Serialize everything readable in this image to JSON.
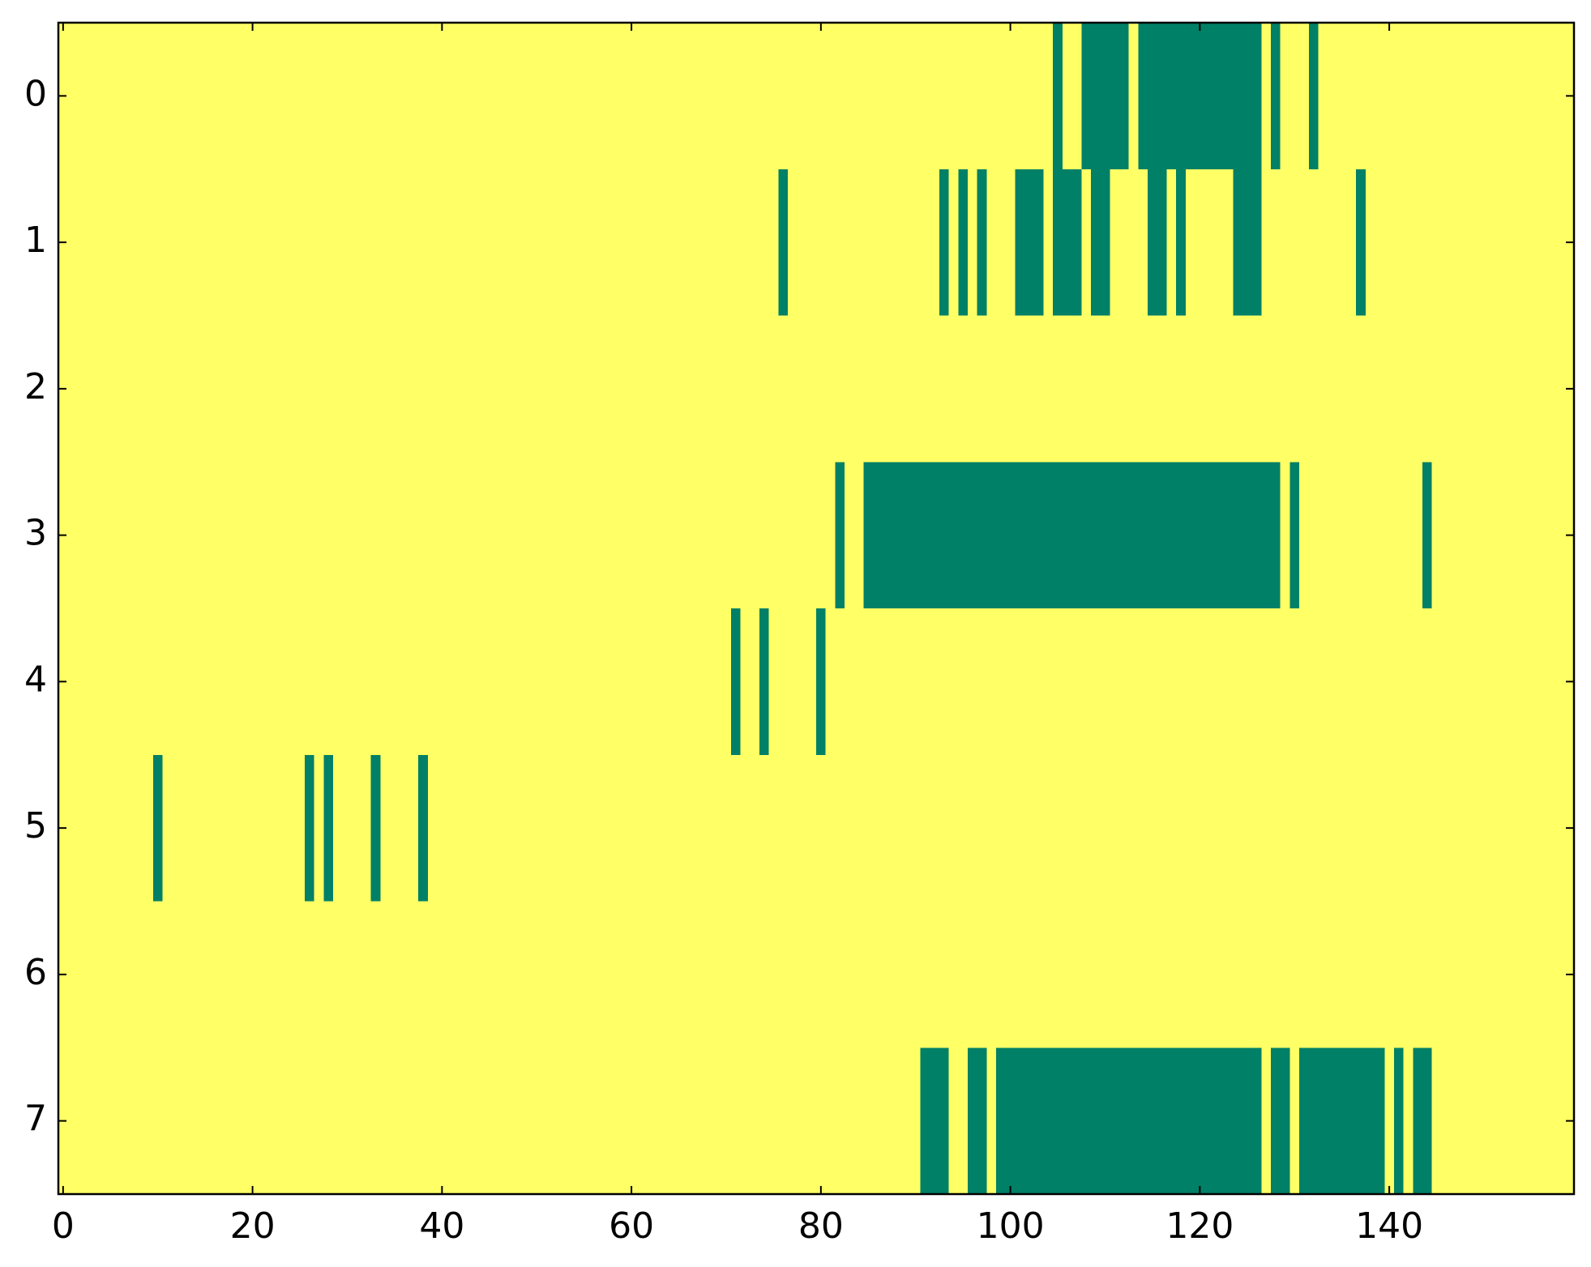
{
  "chart_data": {
    "type": "heatmap",
    "z": [
      [
        1,
        1,
        1,
        1,
        1,
        1,
        1,
        1,
        1,
        1,
        1,
        1,
        1,
        1,
        1,
        1,
        1,
        1,
        1,
        1,
        1,
        1,
        1,
        1,
        1,
        1,
        1,
        1,
        1,
        1,
        1,
        1,
        1,
        1,
        1,
        1,
        1,
        1,
        1,
        1,
        1,
        1,
        1,
        1,
        1,
        1,
        1,
        1,
        1,
        1,
        1,
        1,
        1,
        1,
        1,
        1,
        1,
        1,
        1,
        1,
        1,
        1,
        1,
        1,
        1,
        1,
        1,
        1,
        1,
        1,
        1,
        1,
        1,
        1,
        1,
        1,
        1,
        1,
        1,
        1,
        1,
        1,
        1,
        1,
        1,
        1,
        1,
        1,
        1,
        1,
        1,
        1,
        1,
        1,
        1,
        1,
        1,
        1,
        1,
        1,
        1,
        1,
        1,
        1,
        1,
        0,
        1,
        1,
        0,
        0,
        0,
        0,
        0,
        1,
        0,
        0,
        0,
        0,
        0,
        0,
        0,
        0,
        0,
        0,
        0,
        0,
        0,
        1,
        0,
        1,
        1,
        1,
        0,
        1,
        1,
        1,
        1,
        1,
        1,
        1,
        1,
        1,
        1,
        1,
        1,
        1,
        1,
        1,
        1,
        1,
        1,
        1,
        1,
        1,
        1,
        1,
        1,
        1,
        1,
        1
      ],
      [
        1,
        1,
        1,
        1,
        1,
        1,
        1,
        1,
        1,
        1,
        1,
        1,
        1,
        1,
        1,
        1,
        1,
        1,
        1,
        1,
        1,
        1,
        1,
        1,
        1,
        1,
        1,
        1,
        1,
        1,
        1,
        1,
        1,
        1,
        1,
        1,
        1,
        1,
        1,
        1,
        1,
        1,
        1,
        1,
        1,
        1,
        1,
        1,
        1,
        1,
        1,
        1,
        1,
        1,
        1,
        1,
        1,
        1,
        1,
        1,
        1,
        1,
        1,
        1,
        1,
        1,
        1,
        1,
        1,
        1,
        1,
        1,
        1,
        1,
        1,
        1,
        0,
        1,
        1,
        1,
        1,
        1,
        1,
        1,
        1,
        1,
        1,
        1,
        1,
        1,
        1,
        1,
        1,
        0,
        1,
        0,
        1,
        0,
        1,
        1,
        1,
        0,
        0,
        0,
        1,
        0,
        0,
        0,
        1,
        0,
        0,
        1,
        1,
        1,
        1,
        0,
        0,
        1,
        0,
        1,
        1,
        1,
        1,
        1,
        0,
        0,
        0,
        1,
        1,
        1,
        1,
        1,
        1,
        1,
        1,
        1,
        1,
        0,
        1,
        1,
        1,
        1,
        1,
        1,
        1,
        1,
        1,
        1,
        1,
        1,
        1,
        1,
        1,
        1,
        1,
        1,
        1,
        1,
        1,
        1
      ],
      [
        1,
        1,
        1,
        1,
        1,
        1,
        1,
        1,
        1,
        1,
        1,
        1,
        1,
        1,
        1,
        1,
        1,
        1,
        1,
        1,
        1,
        1,
        1,
        1,
        1,
        1,
        1,
        1,
        1,
        1,
        1,
        1,
        1,
        1,
        1,
        1,
        1,
        1,
        1,
        1,
        1,
        1,
        1,
        1,
        1,
        1,
        1,
        1,
        1,
        1,
        1,
        1,
        1,
        1,
        1,
        1,
        1,
        1,
        1,
        1,
        1,
        1,
        1,
        1,
        1,
        1,
        1,
        1,
        1,
        1,
        1,
        1,
        1,
        1,
        1,
        1,
        1,
        1,
        1,
        1,
        1,
        1,
        1,
        1,
        1,
        1,
        1,
        1,
        1,
        1,
        1,
        1,
        1,
        1,
        1,
        1,
        1,
        1,
        1,
        1,
        1,
        1,
        1,
        1,
        1,
        1,
        1,
        1,
        1,
        1,
        1,
        1,
        1,
        1,
        1,
        1,
        1,
        1,
        1,
        1,
        1,
        1,
        1,
        1,
        1,
        1,
        1,
        1,
        1,
        1,
        1,
        1,
        1,
        1,
        1,
        1,
        1,
        1,
        1,
        1,
        1,
        1,
        1,
        1,
        1,
        1,
        1,
        1,
        1,
        1,
        1,
        1,
        1,
        1,
        1,
        1,
        1,
        1,
        1,
        1
      ],
      [
        1,
        1,
        1,
        1,
        1,
        1,
        1,
        1,
        1,
        1,
        1,
        1,
        1,
        1,
        1,
        1,
        1,
        1,
        1,
        1,
        1,
        1,
        1,
        1,
        1,
        1,
        1,
        1,
        1,
        1,
        1,
        1,
        1,
        1,
        1,
        1,
        1,
        1,
        1,
        1,
        1,
        1,
        1,
        1,
        1,
        1,
        1,
        1,
        1,
        1,
        1,
        1,
        1,
        1,
        1,
        1,
        1,
        1,
        1,
        1,
        1,
        1,
        1,
        1,
        1,
        1,
        1,
        1,
        1,
        1,
        1,
        1,
        1,
        1,
        1,
        1,
        1,
        1,
        1,
        1,
        1,
        1,
        0,
        1,
        1,
        0,
        0,
        0,
        0,
        0,
        0,
        0,
        0,
        0,
        0,
        0,
        0,
        0,
        0,
        0,
        0,
        0,
        0,
        0,
        0,
        0,
        0,
        0,
        0,
        0,
        0,
        0,
        0,
        0,
        0,
        0,
        0,
        0,
        0,
        0,
        0,
        0,
        0,
        0,
        0,
        0,
        0,
        0,
        0,
        1,
        0,
        1,
        1,
        1,
        1,
        1,
        1,
        1,
        1,
        1,
        1,
        1,
        1,
        1,
        0,
        1,
        1,
        1,
        1,
        1,
        1,
        1,
        1,
        1,
        1,
        1,
        1,
        1,
        1,
        1
      ],
      [
        1,
        1,
        1,
        1,
        1,
        1,
        1,
        1,
        1,
        1,
        1,
        1,
        1,
        1,
        1,
        1,
        1,
        1,
        1,
        1,
        1,
        1,
        1,
        1,
        1,
        1,
        1,
        1,
        1,
        1,
        1,
        1,
        1,
        1,
        1,
        1,
        1,
        1,
        1,
        1,
        1,
        1,
        1,
        1,
        1,
        1,
        1,
        1,
        1,
        1,
        1,
        1,
        1,
        1,
        1,
        1,
        1,
        1,
        1,
        1,
        1,
        1,
        1,
        1,
        1,
        1,
        1,
        1,
        1,
        1,
        1,
        0,
        1,
        1,
        0,
        1,
        1,
        1,
        1,
        1,
        0,
        1,
        1,
        1,
        1,
        1,
        1,
        1,
        1,
        1,
        1,
        1,
        1,
        1,
        1,
        1,
        1,
        1,
        1,
        1,
        1,
        1,
        1,
        1,
        1,
        1,
        1,
        1,
        1,
        1,
        1,
        1,
        1,
        1,
        1,
        1,
        1,
        1,
        1,
        1,
        1,
        1,
        1,
        1,
        1,
        1,
        1,
        1,
        1,
        1,
        1,
        1,
        1,
        1,
        1,
        1,
        1,
        1,
        1,
        1,
        1,
        1,
        1,
        1,
        1,
        1,
        1,
        1,
        1,
        1,
        1,
        1,
        1,
        1,
        1,
        1,
        1,
        1,
        1,
        1
      ],
      [
        1,
        1,
        1,
        1,
        1,
        1,
        1,
        1,
        1,
        1,
        0,
        1,
        1,
        1,
        1,
        1,
        1,
        1,
        1,
        1,
        1,
        1,
        1,
        1,
        1,
        1,
        0,
        1,
        0,
        1,
        1,
        1,
        1,
        0,
        1,
        1,
        1,
        1,
        0,
        1,
        1,
        1,
        1,
        1,
        1,
        1,
        1,
        1,
        1,
        1,
        1,
        1,
        1,
        1,
        1,
        1,
        1,
        1,
        1,
        1,
        1,
        1,
        1,
        1,
        1,
        1,
        1,
        1,
        1,
        1,
        1,
        1,
        1,
        1,
        1,
        1,
        1,
        1,
        1,
        1,
        1,
        1,
        1,
        1,
        1,
        1,
        1,
        1,
        1,
        1,
        1,
        1,
        1,
        1,
        1,
        1,
        1,
        1,
        1,
        1,
        1,
        1,
        1,
        1,
        1,
        1,
        1,
        1,
        1,
        1,
        1,
        1,
        1,
        1,
        1,
        1,
        1,
        1,
        1,
        1,
        1,
        1,
        1,
        1,
        1,
        1,
        1,
        1,
        1,
        1,
        1,
        1,
        1,
        1,
        1,
        1,
        1,
        1,
        1,
        1,
        1,
        1,
        1,
        1,
        1,
        1,
        1,
        1,
        1,
        1,
        1,
        1,
        1,
        1,
        1,
        1,
        1,
        1,
        1,
        1
      ],
      [
        1,
        1,
        1,
        1,
        1,
        1,
        1,
        1,
        1,
        1,
        1,
        1,
        1,
        1,
        1,
        1,
        1,
        1,
        1,
        1,
        1,
        1,
        1,
        1,
        1,
        1,
        1,
        1,
        1,
        1,
        1,
        1,
        1,
        1,
        1,
        1,
        1,
        1,
        1,
        1,
        1,
        1,
        1,
        1,
        1,
        1,
        1,
        1,
        1,
        1,
        1,
        1,
        1,
        1,
        1,
        1,
        1,
        1,
        1,
        1,
        1,
        1,
        1,
        1,
        1,
        1,
        1,
        1,
        1,
        1,
        1,
        1,
        1,
        1,
        1,
        1,
        1,
        1,
        1,
        1,
        1,
        1,
        1,
        1,
        1,
        1,
        1,
        1,
        1,
        1,
        1,
        1,
        1,
        1,
        1,
        1,
        1,
        1,
        1,
        1,
        1,
        1,
        1,
        1,
        1,
        1,
        1,
        1,
        1,
        1,
        1,
        1,
        1,
        1,
        1,
        1,
        1,
        1,
        1,
        1,
        1,
        1,
        1,
        1,
        1,
        1,
        1,
        1,
        1,
        1,
        1,
        1,
        1,
        1,
        1,
        1,
        1,
        1,
        1,
        1,
        1,
        1,
        1,
        1,
        1,
        1,
        1,
        1,
        1,
        1,
        1,
        1,
        1,
        1,
        1,
        1,
        1,
        1,
        1,
        1
      ],
      [
        1,
        1,
        1,
        1,
        1,
        1,
        1,
        1,
        1,
        1,
        1,
        1,
        1,
        1,
        1,
        1,
        1,
        1,
        1,
        1,
        1,
        1,
        1,
        1,
        1,
        1,
        1,
        1,
        1,
        1,
        1,
        1,
        1,
        1,
        1,
        1,
        1,
        1,
        1,
        1,
        1,
        1,
        1,
        1,
        1,
        1,
        1,
        1,
        1,
        1,
        1,
        1,
        1,
        1,
        1,
        1,
        1,
        1,
        1,
        1,
        1,
        1,
        1,
        1,
        1,
        1,
        1,
        1,
        1,
        1,
        1,
        1,
        1,
        1,
        1,
        1,
        1,
        1,
        1,
        1,
        1,
        1,
        1,
        1,
        1,
        1,
        1,
        1,
        1,
        1,
        1,
        0,
        0,
        0,
        1,
        1,
        0,
        0,
        1,
        0,
        0,
        0,
        0,
        0,
        0,
        0,
        0,
        0,
        0,
        0,
        0,
        0,
        0,
        0,
        0,
        0,
        0,
        0,
        0,
        0,
        0,
        0,
        0,
        0,
        0,
        0,
        0,
        1,
        0,
        0,
        1,
        0,
        0,
        0,
        0,
        0,
        0,
        0,
        0,
        0,
        1,
        0,
        1,
        0,
        0,
        1,
        1,
        1,
        1,
        1,
        1,
        1,
        1,
        1,
        1,
        1,
        1,
        1,
        1,
        1
      ]
    ],
    "colors": [
      "#008066",
      "#ffff66"
    ],
    "xlim": [
      -0.5,
      159.5
    ],
    "xticks": [
      0,
      20,
      40,
      60,
      80,
      100,
      120,
      140
    ],
    "ylim": [
      7.5,
      -0.5
    ],
    "yticks": [
      0,
      1,
      2,
      3,
      4,
      5,
      6,
      7
    ]
  }
}
